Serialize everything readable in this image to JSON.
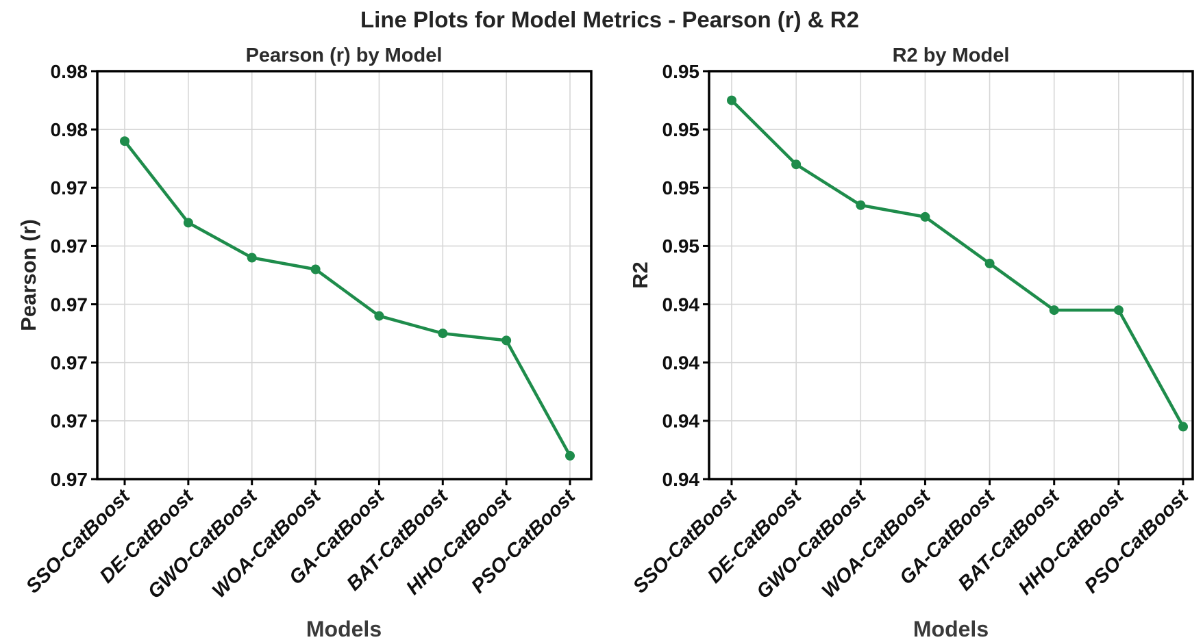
{
  "figure": {
    "title": "Line Plots for Model Metrics - Pearson (r) & R2"
  },
  "chart_data": [
    {
      "type": "line",
      "title": "Pearson (r) by Model",
      "xlabel": "Models",
      "ylabel": "Pearson (r)",
      "categories": [
        "SSO-CatBoost",
        "DE-CatBoost",
        "GWO-CatBoost",
        "WOA-CatBoost",
        "GA-CatBoost",
        "BAT-CatBoost",
        "HHO-CatBoost",
        "PSO-CatBoost"
      ],
      "series": [
        {
          "name": "Pearson (r)",
          "values": [
            0.9754,
            0.9747,
            0.9744,
            0.9743,
            0.9739,
            0.97375,
            0.97369,
            0.9727
          ]
        }
      ],
      "ylim": [
        0.9725,
        0.976
      ],
      "y_tick_labels_top_to_bottom": [
        "0.98",
        "0.98",
        "0.97",
        "0.97",
        "0.97",
        "0.97",
        "0.97",
        "0.97"
      ],
      "grid": true,
      "legend": false
    },
    {
      "type": "line",
      "title": "R2 by Model",
      "xlabel": "Models",
      "ylabel": "R2",
      "categories": [
        "SSO-CatBoost",
        "DE-CatBoost",
        "GWO-CatBoost",
        "WOA-CatBoost",
        "GA-CatBoost",
        "BAT-CatBoost",
        "HHO-CatBoost",
        "PSO-CatBoost"
      ],
      "series": [
        {
          "name": "R2",
          "values": [
            0.9475,
            0.9464,
            0.9457,
            0.9455,
            0.9447,
            0.9439,
            0.9439,
            0.9419
          ]
        }
      ],
      "ylim": [
        0.941,
        0.948
      ],
      "y_tick_labels_top_to_bottom": [
        "0.95",
        "0.95",
        "0.95",
        "0.95",
        "0.94",
        "0.94",
        "0.94",
        "0.94"
      ],
      "grid": true,
      "legend": false
    }
  ],
  "colors": {
    "line": "#1e8c4b",
    "marker": "#1e8c4b",
    "grid": "#d6d6d6",
    "spine": "#000000",
    "title_text": "#242424",
    "tick_text": "#0f0f0f",
    "axis_label_text": "#3a3a3a"
  }
}
